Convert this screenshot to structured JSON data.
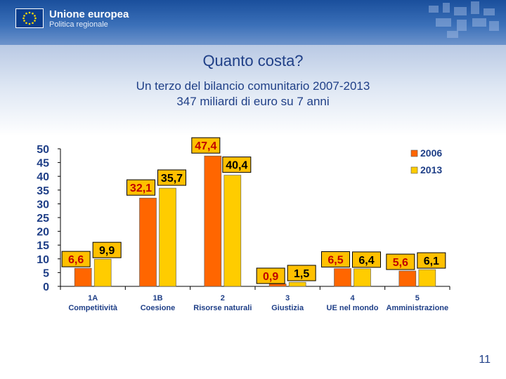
{
  "header": {
    "org": "Unione europea",
    "dept": "Politica regionale"
  },
  "title": "Quanto costa?",
  "subtitle_line1": "Un terzo del bilancio comunitario 2007-2013",
  "subtitle_line2": "347 miliardi di euro su 7 anni",
  "page_number": "11",
  "colors": {
    "header_blue": "#1a4f9c",
    "title_blue": "#1f3f87",
    "series_2006": "#ff6600",
    "series_2013": "#ffcc00",
    "label_box": "#ffc000"
  },
  "chart_data": {
    "type": "bar",
    "title": "",
    "categories": [
      {
        "number": "1A",
        "name": "Competitività"
      },
      {
        "number": "1B",
        "name": "Coesione"
      },
      {
        "number": "2",
        "name": "Risorse naturali"
      },
      {
        "number": "3",
        "name": "Giustizia"
      },
      {
        "number": "4",
        "name": "UE nel mondo"
      },
      {
        "number": "5",
        "name": "Amministrazione"
      }
    ],
    "series": [
      {
        "name": "2006",
        "values": [
          6.6,
          32.1,
          47.4,
          0.9,
          6.5,
          5.6
        ],
        "labels": [
          "6,6",
          "32,1",
          "47,4",
          "0,9",
          "6,5",
          "5,6"
        ]
      },
      {
        "name": "2013",
        "values": [
          9.9,
          35.7,
          40.4,
          1.5,
          6.4,
          6.1
        ],
        "labels": [
          "9,9",
          "35,7",
          "40,4",
          "1,5",
          "6,4",
          "6,1"
        ]
      }
    ],
    "ylim": [
      0,
      50
    ],
    "yticks": [
      "0",
      "5",
      "10",
      "15",
      "20",
      "25",
      "30",
      "35",
      "40",
      "45",
      "50"
    ],
    "legend_position": "top-right",
    "xlabel": "",
    "ylabel": ""
  }
}
